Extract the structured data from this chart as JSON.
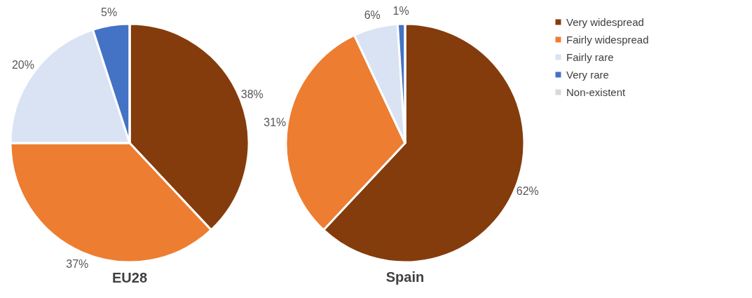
{
  "chart_data": {
    "type": "pie",
    "categories": [
      "Very widespread",
      "Fairly widespread",
      "Fairly rare",
      "Very rare",
      "Non-existent"
    ],
    "colors": [
      "#843c0c",
      "#ed7d31",
      "#dae3f3",
      "#4472c4",
      "#d9d9d9"
    ],
    "legend": "right",
    "series": [
      {
        "name": "EU28",
        "values": [
          38,
          37,
          20,
          5,
          0
        ],
        "value_labels": [
          "38%",
          "37%",
          "20%",
          "5%",
          null
        ]
      },
      {
        "name": "Spain",
        "values": [
          62,
          31,
          6,
          1,
          0
        ],
        "value_labels": [
          "62%",
          "31%",
          "6%",
          "1%",
          null
        ]
      }
    ]
  }
}
